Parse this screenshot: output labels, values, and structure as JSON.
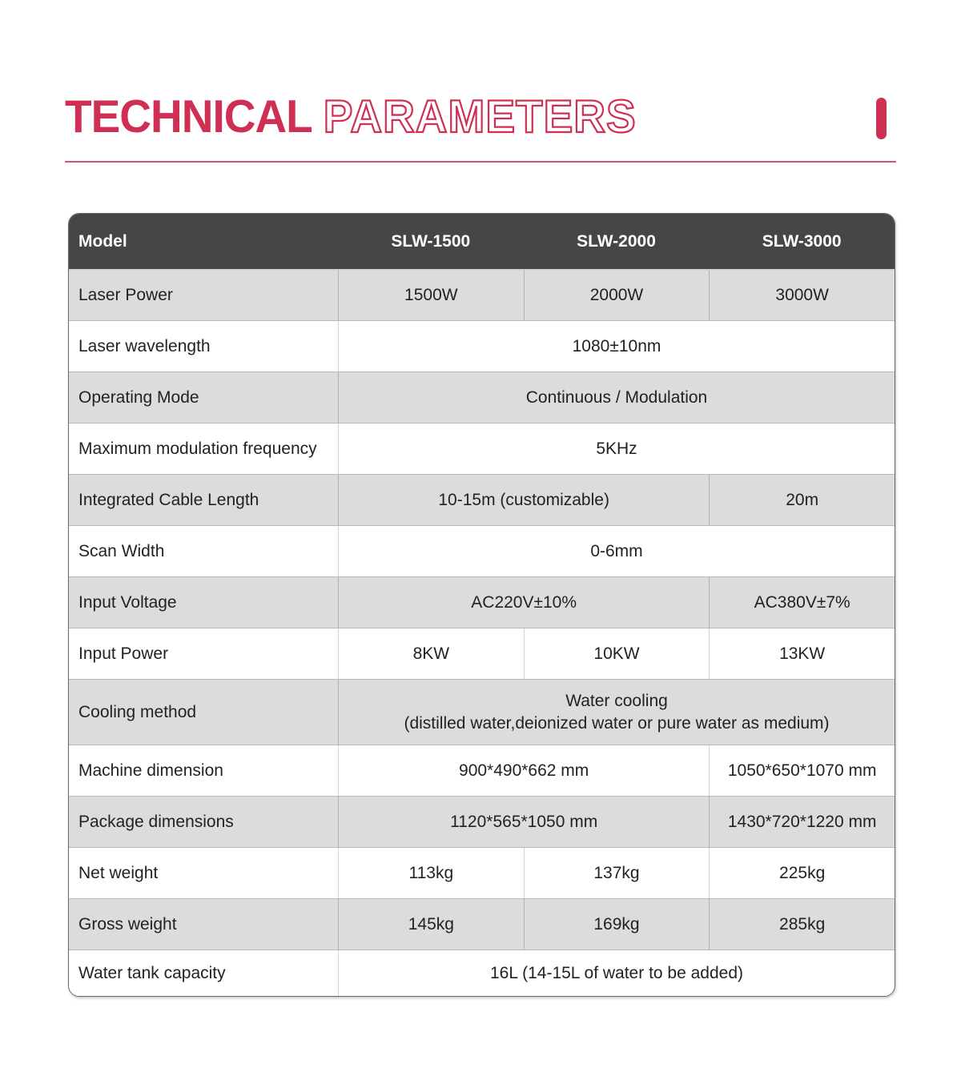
{
  "title": {
    "solid": "TECHNICAL",
    "outline": "PARAMETERS"
  },
  "colors": {
    "accent": "#ce2f52",
    "header_bg": "#464646",
    "row_gray": "#dcdcdc"
  },
  "table": {
    "header_cols": [
      "Model",
      "SLW-1500",
      "SLW-2000",
      "SLW-3000"
    ],
    "rows": [
      {
        "label": "Laser Power",
        "values": [
          "1500W",
          "2000W",
          "3000W"
        ]
      },
      {
        "label": "Laser wavelength",
        "value": "1080±10nm"
      },
      {
        "label": "Operating Mode",
        "value": "Continuous / Modulation"
      },
      {
        "label": "Maximum modulation frequency",
        "value": "5KHz"
      },
      {
        "label": "Integrated Cable Length",
        "value_main": "10-15m (customizable)",
        "value_last": "20m"
      },
      {
        "label": "Scan Width",
        "value": "0-6mm"
      },
      {
        "label": "Input Voltage",
        "value_main": "AC220V±10%",
        "value_last": "AC380V±7%"
      },
      {
        "label": "Input Power",
        "values": [
          "8KW",
          "10KW",
          "13KW"
        ]
      },
      {
        "label": "Cooling method",
        "value_line1": "Water cooling",
        "value_line2": "(distilled water,deionized water or pure water as medium)"
      },
      {
        "label": "Machine dimension",
        "value_main": "900*490*662 mm",
        "value_last": "1050*650*1070 mm"
      },
      {
        "label": "Package dimensions",
        "value_main": "1120*565*1050 mm",
        "value_last": "1430*720*1220 mm"
      },
      {
        "label": "Net weight",
        "values": [
          "113kg",
          "137kg",
          "225kg"
        ]
      },
      {
        "label": "Gross weight",
        "values": [
          "145kg",
          "169kg",
          "285kg"
        ]
      },
      {
        "label": "Water tank capacity",
        "value": "16L (14-15L of water to be added)"
      }
    ]
  }
}
